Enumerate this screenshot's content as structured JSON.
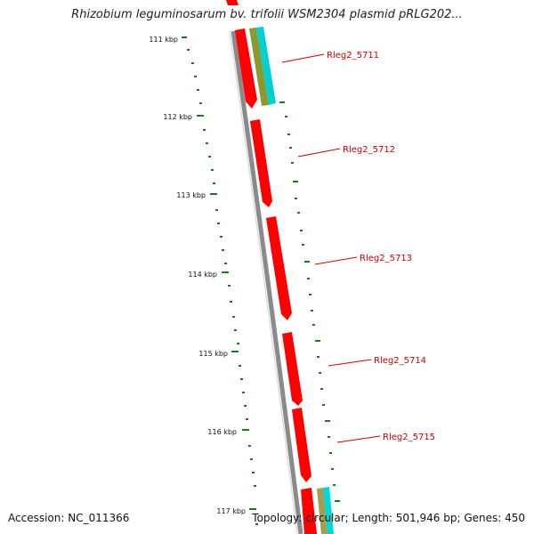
{
  "title": "Rhizobium leguminosarum bv. trifolii WSM2304 plasmid pRLG202...",
  "footer": {
    "accession": "Accession: NC_011366",
    "summary": "Topology: circular; Length: 501,946 bp; Genes: 450"
  },
  "ticks": [
    "111 kbp",
    "112 kbp",
    "113 kbp",
    "114 kbp",
    "115 kbp",
    "116 kbp",
    "117 kbp"
  ],
  "genes": [
    "Rleg2_5711",
    "Rleg2_5712",
    "Rleg2_5713",
    "Rleg2_5714",
    "Rleg2_5715"
  ],
  "colors": {
    "gene": "#ff0000",
    "backbone": "#888888",
    "gc_dots": "#1e7a1e",
    "label": "#cc0000",
    "teal": "#00cccc",
    "olive": "#7a8a30"
  }
}
